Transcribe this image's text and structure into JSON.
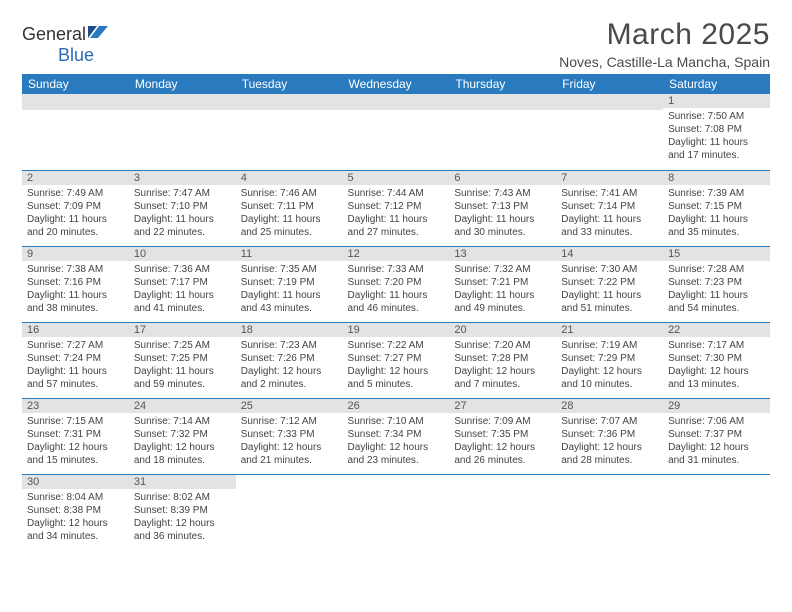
{
  "brand": {
    "text_a": "General",
    "text_b": "Blue"
  },
  "title": "March 2025",
  "location": "Noves, Castille-La Mancha, Spain",
  "colors": {
    "header_bg": "#2a7ac0",
    "header_text": "#ffffff",
    "daynum_bg": "#e3e3e3",
    "cell_border": "#2a7ac0",
    "body_text": "#444444",
    "title_text": "#4a4a4a"
  },
  "weekdays": [
    "Sunday",
    "Monday",
    "Tuesday",
    "Wednesday",
    "Thursday",
    "Friday",
    "Saturday"
  ],
  "weeks": [
    [
      null,
      null,
      null,
      null,
      null,
      null,
      {
        "n": "1",
        "sr": "Sunrise: 7:50 AM",
        "ss": "Sunset: 7:08 PM",
        "dl": "Daylight: 11 hours and 17 minutes."
      }
    ],
    [
      {
        "n": "2",
        "sr": "Sunrise: 7:49 AM",
        "ss": "Sunset: 7:09 PM",
        "dl": "Daylight: 11 hours and 20 minutes."
      },
      {
        "n": "3",
        "sr": "Sunrise: 7:47 AM",
        "ss": "Sunset: 7:10 PM",
        "dl": "Daylight: 11 hours and 22 minutes."
      },
      {
        "n": "4",
        "sr": "Sunrise: 7:46 AM",
        "ss": "Sunset: 7:11 PM",
        "dl": "Daylight: 11 hours and 25 minutes."
      },
      {
        "n": "5",
        "sr": "Sunrise: 7:44 AM",
        "ss": "Sunset: 7:12 PM",
        "dl": "Daylight: 11 hours and 27 minutes."
      },
      {
        "n": "6",
        "sr": "Sunrise: 7:43 AM",
        "ss": "Sunset: 7:13 PM",
        "dl": "Daylight: 11 hours and 30 minutes."
      },
      {
        "n": "7",
        "sr": "Sunrise: 7:41 AM",
        "ss": "Sunset: 7:14 PM",
        "dl": "Daylight: 11 hours and 33 minutes."
      },
      {
        "n": "8",
        "sr": "Sunrise: 7:39 AM",
        "ss": "Sunset: 7:15 PM",
        "dl": "Daylight: 11 hours and 35 minutes."
      }
    ],
    [
      {
        "n": "9",
        "sr": "Sunrise: 7:38 AM",
        "ss": "Sunset: 7:16 PM",
        "dl": "Daylight: 11 hours and 38 minutes."
      },
      {
        "n": "10",
        "sr": "Sunrise: 7:36 AM",
        "ss": "Sunset: 7:17 PM",
        "dl": "Daylight: 11 hours and 41 minutes."
      },
      {
        "n": "11",
        "sr": "Sunrise: 7:35 AM",
        "ss": "Sunset: 7:19 PM",
        "dl": "Daylight: 11 hours and 43 minutes."
      },
      {
        "n": "12",
        "sr": "Sunrise: 7:33 AM",
        "ss": "Sunset: 7:20 PM",
        "dl": "Daylight: 11 hours and 46 minutes."
      },
      {
        "n": "13",
        "sr": "Sunrise: 7:32 AM",
        "ss": "Sunset: 7:21 PM",
        "dl": "Daylight: 11 hours and 49 minutes."
      },
      {
        "n": "14",
        "sr": "Sunrise: 7:30 AM",
        "ss": "Sunset: 7:22 PM",
        "dl": "Daylight: 11 hours and 51 minutes."
      },
      {
        "n": "15",
        "sr": "Sunrise: 7:28 AM",
        "ss": "Sunset: 7:23 PM",
        "dl": "Daylight: 11 hours and 54 minutes."
      }
    ],
    [
      {
        "n": "16",
        "sr": "Sunrise: 7:27 AM",
        "ss": "Sunset: 7:24 PM",
        "dl": "Daylight: 11 hours and 57 minutes."
      },
      {
        "n": "17",
        "sr": "Sunrise: 7:25 AM",
        "ss": "Sunset: 7:25 PM",
        "dl": "Daylight: 11 hours and 59 minutes."
      },
      {
        "n": "18",
        "sr": "Sunrise: 7:23 AM",
        "ss": "Sunset: 7:26 PM",
        "dl": "Daylight: 12 hours and 2 minutes."
      },
      {
        "n": "19",
        "sr": "Sunrise: 7:22 AM",
        "ss": "Sunset: 7:27 PM",
        "dl": "Daylight: 12 hours and 5 minutes."
      },
      {
        "n": "20",
        "sr": "Sunrise: 7:20 AM",
        "ss": "Sunset: 7:28 PM",
        "dl": "Daylight: 12 hours and 7 minutes."
      },
      {
        "n": "21",
        "sr": "Sunrise: 7:19 AM",
        "ss": "Sunset: 7:29 PM",
        "dl": "Daylight: 12 hours and 10 minutes."
      },
      {
        "n": "22",
        "sr": "Sunrise: 7:17 AM",
        "ss": "Sunset: 7:30 PM",
        "dl": "Daylight: 12 hours and 13 minutes."
      }
    ],
    [
      {
        "n": "23",
        "sr": "Sunrise: 7:15 AM",
        "ss": "Sunset: 7:31 PM",
        "dl": "Daylight: 12 hours and 15 minutes."
      },
      {
        "n": "24",
        "sr": "Sunrise: 7:14 AM",
        "ss": "Sunset: 7:32 PM",
        "dl": "Daylight: 12 hours and 18 minutes."
      },
      {
        "n": "25",
        "sr": "Sunrise: 7:12 AM",
        "ss": "Sunset: 7:33 PM",
        "dl": "Daylight: 12 hours and 21 minutes."
      },
      {
        "n": "26",
        "sr": "Sunrise: 7:10 AM",
        "ss": "Sunset: 7:34 PM",
        "dl": "Daylight: 12 hours and 23 minutes."
      },
      {
        "n": "27",
        "sr": "Sunrise: 7:09 AM",
        "ss": "Sunset: 7:35 PM",
        "dl": "Daylight: 12 hours and 26 minutes."
      },
      {
        "n": "28",
        "sr": "Sunrise: 7:07 AM",
        "ss": "Sunset: 7:36 PM",
        "dl": "Daylight: 12 hours and 28 minutes."
      },
      {
        "n": "29",
        "sr": "Sunrise: 7:06 AM",
        "ss": "Sunset: 7:37 PM",
        "dl": "Daylight: 12 hours and 31 minutes."
      }
    ],
    [
      {
        "n": "30",
        "sr": "Sunrise: 8:04 AM",
        "ss": "Sunset: 8:38 PM",
        "dl": "Daylight: 12 hours and 34 minutes."
      },
      {
        "n": "31",
        "sr": "Sunrise: 8:02 AM",
        "ss": "Sunset: 8:39 PM",
        "dl": "Daylight: 12 hours and 36 minutes."
      },
      null,
      null,
      null,
      null,
      null
    ]
  ]
}
